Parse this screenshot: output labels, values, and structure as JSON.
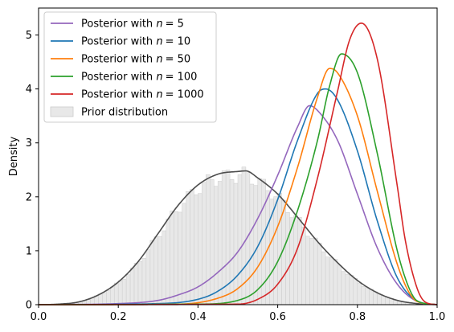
{
  "chart_data": {
    "type": "line",
    "title": "",
    "xlabel": "",
    "ylabel": "Density",
    "xlim": [
      0.0,
      1.0
    ],
    "ylim": [
      0,
      5.5
    ],
    "xticks": [
      "0.0",
      "0.2",
      "0.4",
      "0.6",
      "0.8",
      "1.0"
    ],
    "yticks": [
      "0",
      "1",
      "2",
      "3",
      "4",
      "5"
    ],
    "grid": false,
    "legend_position": "top-left",
    "series": [
      {
        "name": "Posterior with n = 5",
        "legend_prefix": "Posterior with ",
        "legend_var": "n",
        "legend_value": "= 5",
        "color": "#9467bd",
        "x": [
          0.0,
          0.2,
          0.3,
          0.35,
          0.4,
          0.45,
          0.5,
          0.55,
          0.6,
          0.65,
          0.68,
          0.7,
          0.75,
          0.8,
          0.85,
          0.9,
          0.95,
          1.0
        ],
        "y": [
          0.0,
          0.02,
          0.08,
          0.18,
          0.33,
          0.6,
          0.98,
          1.6,
          2.4,
          3.3,
          3.69,
          3.6,
          3.05,
          2.05,
          1.05,
          0.38,
          0.06,
          0.0
        ]
      },
      {
        "name": "Posterior with n = 10",
        "legend_prefix": "Posterior with ",
        "legend_var": "n",
        "legend_value": "= 10",
        "color": "#1f77b4",
        "x": [
          0.0,
          0.3,
          0.4,
          0.45,
          0.5,
          0.55,
          0.6,
          0.65,
          0.7,
          0.72,
          0.75,
          0.8,
          0.85,
          0.9,
          0.95,
          1.0
        ],
        "y": [
          0.0,
          0.02,
          0.1,
          0.25,
          0.55,
          1.08,
          1.95,
          3.05,
          3.92,
          4.0,
          3.8,
          2.85,
          1.55,
          0.5,
          0.07,
          0.0
        ]
      },
      {
        "name": "Posterior with n = 50",
        "legend_prefix": "Posterior with ",
        "legend_var": "n",
        "legend_value": "= 50",
        "color": "#ff7f0e",
        "x": [
          0.0,
          0.35,
          0.45,
          0.5,
          0.55,
          0.6,
          0.65,
          0.7,
          0.73,
          0.75,
          0.8,
          0.85,
          0.9,
          0.93,
          0.95,
          1.0
        ],
        "y": [
          0.0,
          0.01,
          0.12,
          0.3,
          0.7,
          1.45,
          2.55,
          3.85,
          4.38,
          4.3,
          3.5,
          2.1,
          0.75,
          0.22,
          0.06,
          0.0
        ]
      },
      {
        "name": "Posterior with n = 100",
        "legend_prefix": "Posterior with ",
        "legend_var": "n",
        "legend_value": "= 100",
        "color": "#2ca02c",
        "x": [
          0.0,
          0.4,
          0.5,
          0.55,
          0.6,
          0.65,
          0.7,
          0.73,
          0.76,
          0.8,
          0.85,
          0.9,
          0.93,
          0.95,
          1.0
        ],
        "y": [
          0.0,
          0.01,
          0.08,
          0.28,
          0.8,
          1.75,
          3.05,
          4.05,
          4.65,
          4.3,
          2.8,
          1.0,
          0.3,
          0.07,
          0.0
        ]
      },
      {
        "name": "Posterior with n = 1000",
        "legend_prefix": "Posterior with ",
        "legend_var": "n",
        "legend_value": "= 1000",
        "color": "#d62728",
        "x": [
          0.0,
          0.5,
          0.55,
          0.6,
          0.65,
          0.7,
          0.75,
          0.78,
          0.81,
          0.85,
          0.9,
          0.92,
          0.95,
          0.97,
          1.0
        ],
        "y": [
          0.0,
          0.01,
          0.1,
          0.38,
          1.05,
          2.35,
          3.95,
          4.9,
          5.22,
          4.55,
          2.2,
          1.2,
          0.3,
          0.05,
          0.0
        ]
      }
    ],
    "prior": {
      "name": "Prior distribution",
      "line_color": "#4d4d4d",
      "bar_fill": "#e8e8e8",
      "bar_edge": "#cccccc",
      "x": [
        0.0,
        0.05,
        0.1,
        0.15,
        0.2,
        0.25,
        0.3,
        0.35,
        0.4,
        0.45,
        0.5,
        0.52,
        0.55,
        0.6,
        0.65,
        0.7,
        0.75,
        0.8,
        0.85,
        0.9,
        0.95,
        1.0
      ],
      "y": [
        0.0,
        0.01,
        0.05,
        0.18,
        0.42,
        0.8,
        1.32,
        1.84,
        2.22,
        2.42,
        2.47,
        2.48,
        2.35,
        2.05,
        1.62,
        1.17,
        0.78,
        0.45,
        0.22,
        0.08,
        0.02,
        0.0
      ],
      "bin_width": 0.01
    }
  }
}
